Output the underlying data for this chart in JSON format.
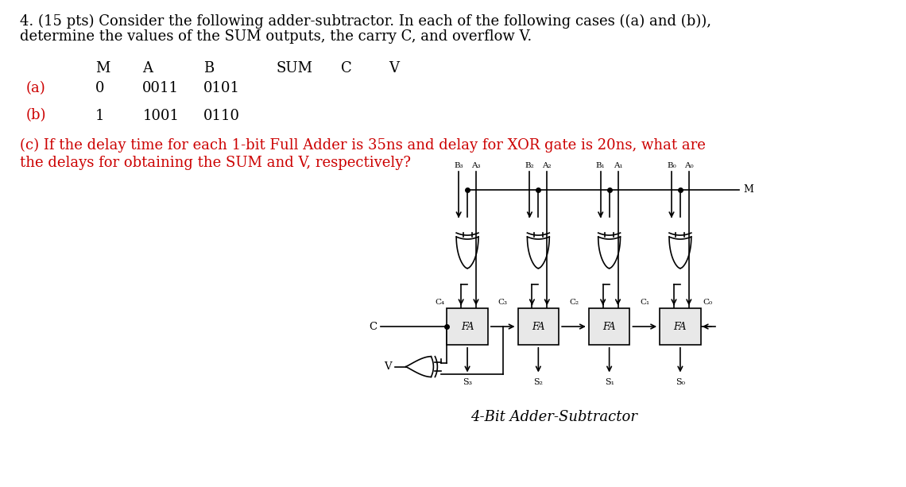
{
  "title_line1": "4. (15 pts) Consider the following adder-subtractor. In each of the following cases ((a) and (b)),",
  "title_line2": "determine the values of the SUM outputs, the carry C, and overflow V.",
  "header_row": [
    "M",
    "A",
    "B",
    "SUM",
    "C",
    "V"
  ],
  "row_a_label": "(a)",
  "row_a_values": [
    "0",
    "0011",
    "0101",
    "",
    "",
    ""
  ],
  "row_b_label": "(b)",
  "row_b_values": [
    "1",
    "1001",
    "0110",
    "",
    "",
    ""
  ],
  "part_c_line1": "(c) If the delay time for each 1-bit Full Adder is 35ns and delay for XOR gate is 20ns, what are",
  "part_c_line2": "the delays for obtaining the SUM and V, respectively?",
  "diagram_caption": "4-Bit Adder-Subtractor",
  "bg_color": "#ffffff",
  "text_color": "#000000",
  "red_color": "#cc0000",
  "font_size_main": 13,
  "font_size_small": 8.5,
  "font_size_caption": 13
}
